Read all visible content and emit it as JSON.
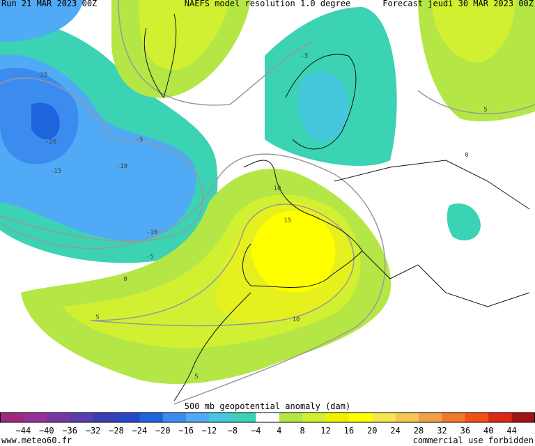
{
  "header": {
    "run": "Run 21 MAR 2023 00Z",
    "model": "NAEFS model resolution 1.0 degree",
    "forecast": "Forecast jeudi 30 MAR 2023 00Z"
  },
  "contour_labels": [
    -15,
    -20,
    -15,
    -5,
    -10,
    -10,
    -5,
    0,
    5,
    5,
    10,
    15,
    10,
    -5,
    5,
    0
  ],
  "legend": {
    "title": "500 mb geopotential anomaly (dam)",
    "labels": [
      "−44",
      "−40",
      "−36",
      "−32",
      "−28",
      "−24",
      "−20",
      "−16",
      "−12",
      "−8",
      "−4",
      "4",
      "8",
      "12",
      "16",
      "20",
      "24",
      "28",
      "32",
      "36",
      "40",
      "44"
    ],
    "colors": [
      "#a0287e",
      "#963296",
      "#7837a0",
      "#5a3caa",
      "#3c3cb4",
      "#2846c8",
      "#1e64dc",
      "#3c8cf0",
      "#50aaf5",
      "#46c8dc",
      "#3cd2b4",
      "#ffffff",
      "#b4e646",
      "#d2f032",
      "#f0f000",
      "#ffff00",
      "#f5e650",
      "#f5c850",
      "#f0a046",
      "#f07828",
      "#f05014",
      "#dc2814",
      "#a01414"
    ]
  },
  "footer": {
    "site": "www.meteo60.fr",
    "notice": "commercial use forbidden"
  }
}
